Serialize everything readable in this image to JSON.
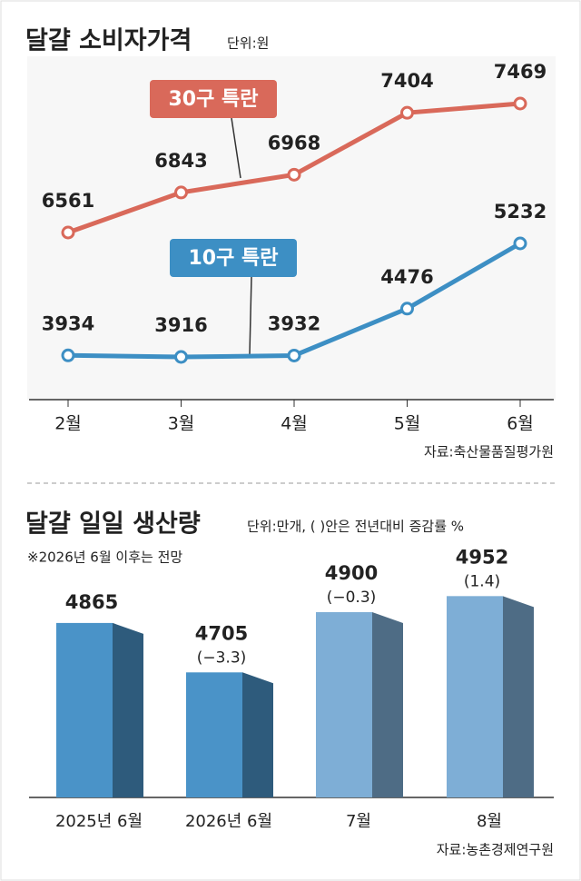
{
  "chart_data": [
    {
      "type": "line",
      "title": "달걀 소비자가격",
      "subtitle": "단위:원",
      "categories": [
        "2월",
        "3월",
        "4월",
        "5월",
        "6월"
      ],
      "series": [
        {
          "name": "30구 특란",
          "color": "#d9695a",
          "values": [
            6561,
            6843,
            6968,
            7404,
            7469
          ]
        },
        {
          "name": "10구 특란",
          "color": "#3d8fc4",
          "values": [
            3934,
            3916,
            3932,
            4476,
            5232
          ]
        }
      ],
      "source": "자료:축산물품질평가원"
    },
    {
      "type": "bar",
      "title": "달걀 일일 생산량",
      "subtitle": "단위:만개, ( )안은 전년대비 증감률 %",
      "note": "※2026년 6월 이후는 전망",
      "categories": [
        "2025년 6월",
        "2026년 6월",
        "7월",
        "8월"
      ],
      "values": [
        4865,
        4705,
        4900,
        4952
      ],
      "colors": [
        "#4a93c8",
        "#4a93c8",
        "#7eaed6",
        "#7eaed6"
      ],
      "change": {
        "values": [
          null,
          -3.3,
          -0.3,
          1.4
        ],
        "value_labels": [
          null,
          "(−3.3)",
          "(−0.3)",
          "(1.4)"
        ]
      },
      "ylim": [
        4300,
        5000
      ],
      "source": "자료:농촌경제연구원"
    }
  ]
}
